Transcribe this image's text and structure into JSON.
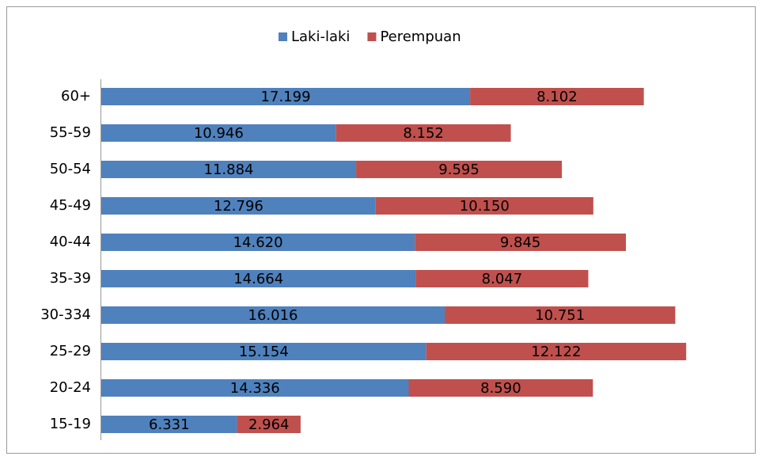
{
  "chart_data": {
    "type": "stacked-bar-horizontal",
    "categories": [
      "60+",
      "55-59",
      "50-54",
      "45-49",
      "40-44",
      "35-39",
      "30-334",
      "25-29",
      "20-24",
      "15-19"
    ],
    "series": [
      {
        "name": "Laki-laki",
        "color": "#4f81bd",
        "values": [
          17199,
          10946,
          11884,
          12796,
          14620,
          14664,
          16016,
          15154,
          14336,
          6331
        ],
        "value_labels": [
          "17.199",
          "10.946",
          "11.884",
          "12.796",
          "14.620",
          "14.664",
          "16.016",
          "15.154",
          "14.336",
          "6.331"
        ]
      },
      {
        "name": "Perempuan",
        "color": "#c0504d",
        "values": [
          8102,
          8152,
          9595,
          10150,
          9845,
          8047,
          10751,
          12122,
          8590,
          2964
        ],
        "value_labels": [
          "8.102",
          "8.152",
          "9.595",
          "10.150",
          "9.845",
          "8.047",
          "10.751",
          "12.122",
          "8.590",
          "2.964"
        ]
      }
    ],
    "legend": "top"
  }
}
